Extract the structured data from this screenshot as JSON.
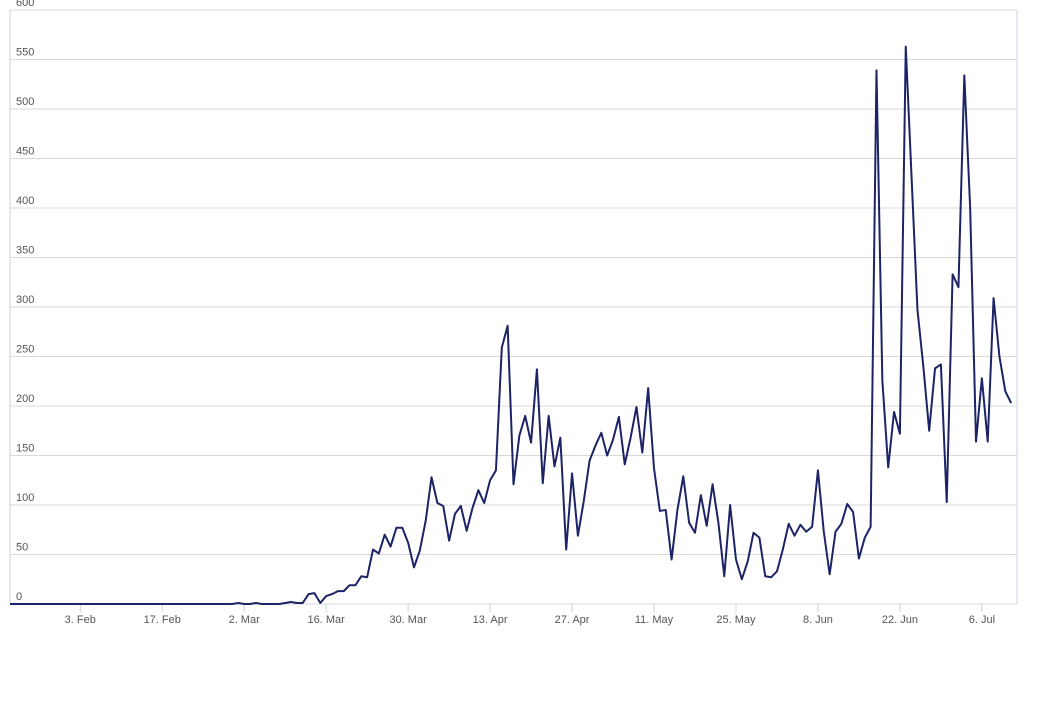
{
  "chart_data": {
    "type": "line",
    "categories": [
      null,
      null,
      null,
      null,
      null,
      null,
      null,
      null,
      null,
      null,
      null,
      null,
      "3. Feb",
      null,
      null,
      null,
      null,
      null,
      null,
      null,
      null,
      null,
      null,
      null,
      null,
      null,
      "17. Feb",
      null,
      null,
      null,
      null,
      null,
      null,
      null,
      null,
      null,
      null,
      null,
      null,
      null,
      "2. Mar",
      null,
      null,
      null,
      null,
      null,
      null,
      null,
      null,
      null,
      null,
      null,
      null,
      null,
      "16. Mar",
      null,
      null,
      null,
      null,
      null,
      null,
      null,
      null,
      null,
      null,
      null,
      null,
      null,
      "30. Mar",
      null,
      null,
      null,
      null,
      null,
      null,
      null,
      null,
      null,
      null,
      null,
      null,
      null,
      "13. Apr",
      null,
      null,
      null,
      null,
      null,
      null,
      null,
      null,
      null,
      null,
      null,
      null,
      null,
      "27. Apr",
      null,
      null,
      null,
      null,
      null,
      null,
      null,
      null,
      null,
      null,
      null,
      null,
      null,
      "11. May",
      null,
      null,
      null,
      null,
      null,
      null,
      null,
      null,
      null,
      null,
      null,
      null,
      null,
      "25. May",
      null,
      null,
      null,
      null,
      null,
      null,
      null,
      null,
      null,
      null,
      null,
      null,
      null,
      "8. Jun",
      null,
      null,
      null,
      null,
      null,
      null,
      null,
      null,
      null,
      null,
      null,
      null,
      null,
      "22. Jun",
      null,
      null,
      null,
      null,
      null,
      null,
      null,
      null,
      null,
      null,
      null,
      null,
      null,
      "6. Jul",
      null,
      null,
      null,
      null,
      null
    ],
    "values": [
      0,
      0,
      0,
      0,
      0,
      0,
      0,
      0,
      0,
      0,
      0,
      0,
      0,
      0,
      0,
      0,
      0,
      0,
      0,
      0,
      0,
      0,
      0,
      0,
      0,
      0,
      0,
      0,
      0,
      0,
      0,
      0,
      0,
      0,
      0,
      0,
      0,
      0,
      0,
      1,
      0,
      0,
      1,
      0,
      0,
      0,
      0,
      1,
      2,
      1,
      1,
      10,
      11,
      1,
      8,
      10,
      13,
      13,
      19,
      19,
      28,
      27,
      55,
      51,
      70,
      58,
      77,
      77,
      62,
      37,
      54,
      84,
      128,
      102,
      99,
      64,
      91,
      99,
      74,
      97,
      115,
      102,
      125,
      135,
      259,
      281,
      121,
      170,
      190,
      163,
      237,
      122,
      190,
      139,
      168,
      55,
      132,
      69,
      104,
      145,
      160,
      173,
      150,
      166,
      189,
      141,
      168,
      199,
      153,
      218,
      137,
      94,
      95,
      45,
      95,
      129,
      82,
      72,
      110,
      79,
      121,
      82,
      28,
      100,
      45,
      25,
      43,
      72,
      67,
      28,
      27,
      33,
      55,
      81,
      69,
      80,
      73,
      78,
      135,
      73,
      30,
      73,
      81,
      101,
      93,
      46,
      67,
      78,
      539,
      226,
      138,
      194,
      172,
      563,
      430,
      297,
      240,
      175,
      238,
      242,
      103,
      333,
      320,
      534,
      400,
      164,
      228,
      164,
      309,
      250,
      215,
      203
    ],
    "color": "#1c2366",
    "ylim": [
      0,
      600
    ],
    "yticks": [
      0,
      50,
      100,
      150,
      200,
      250,
      300,
      350,
      400,
      450,
      500,
      550,
      600
    ],
    "grid": true
  }
}
